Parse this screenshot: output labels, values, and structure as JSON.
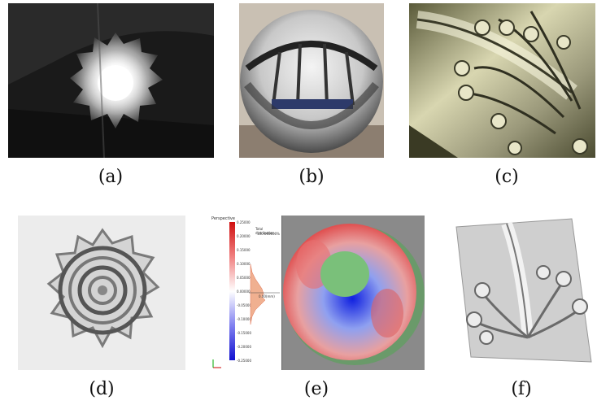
{
  "figure": {
    "panels": [
      {
        "label": "(a)"
      },
      {
        "label": "(b)"
      },
      {
        "label": "(c)"
      },
      {
        "label": "(d)"
      },
      {
        "label": "(e)"
      },
      {
        "label": "(f)"
      }
    ]
  },
  "histogram_panel": {
    "header": "Perspective",
    "legend_title": "Total distribution",
    "legend_value": "100.000000%",
    "scale_ticks": [
      "0.25000",
      "0.20000",
      "0.15000",
      "0.10000",
      "0.05000",
      "0.00000",
      "-0.05000",
      "-0.10000",
      "-0.15000",
      "-0.20000",
      "-0.25000"
    ],
    "marker_value": "0.00(mm)"
  }
}
